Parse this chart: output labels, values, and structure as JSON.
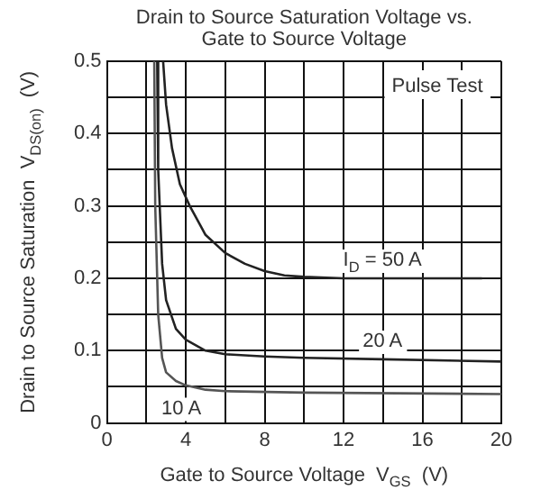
{
  "chart_data": {
    "type": "line",
    "title": "Drain to Source Saturation Voltage vs. Gate to Source Voltage",
    "xlabel": "Gate to Source Voltage  V$_{GS}$  (V)",
    "ylabel": "Drain to Source Saturation  V$_{DS(on)}$  (V)",
    "xlim": [
      0,
      20
    ],
    "ylim": [
      0,
      0.5
    ],
    "xticks": [
      0,
      {
        "value": 2,
        "label": null
      },
      4,
      {
        "value": 6,
        "label": null
      },
      8,
      {
        "value": 10,
        "label": null
      },
      12,
      {
        "value": 14,
        "label": null
      },
      16,
      {
        "value": 18,
        "label": null
      },
      20
    ],
    "yticks": [
      0,
      {
        "value": 0.05,
        "label": null
      },
      0.1,
      {
        "value": 0.15,
        "label": null
      },
      0.2,
      {
        "value": 0.25,
        "label": null
      },
      0.3,
      {
        "value": 0.35,
        "label": null
      },
      0.4,
      {
        "value": 0.45,
        "label": null
      },
      0.5
    ],
    "grid": true,
    "legend": false,
    "marker": "none",
    "line_style": "solid",
    "series": [
      {
        "name": "I$_{D}$ = 50 A",
        "color": "#222222",
        "x": [
          2.85,
          3,
          3.3,
          3.7,
          4.2,
          5,
          6,
          7,
          8,
          9,
          10,
          12,
          16,
          19
        ],
        "values": [
          0.5,
          0.44,
          0.38,
          0.33,
          0.3,
          0.26,
          0.235,
          0.22,
          0.21,
          0.204,
          0.202,
          0.2,
          0.2,
          0.2
        ]
      },
      {
        "name": "20 A",
        "color": "#222222",
        "x": [
          2.55,
          2.6,
          2.8,
          3,
          3.5,
          4,
          5,
          6,
          8,
          10,
          14,
          20
        ],
        "values": [
          0.5,
          0.35,
          0.22,
          0.17,
          0.13,
          0.115,
          0.1,
          0.095,
          0.092,
          0.09,
          0.088,
          0.085
        ]
      },
      {
        "name": "10 A",
        "color": "#555555",
        "x": [
          2.4,
          2.45,
          2.6,
          2.8,
          3,
          3.5,
          4,
          5,
          6,
          10,
          20
        ],
        "values": [
          0.5,
          0.3,
          0.15,
          0.09,
          0.07,
          0.058,
          0.052,
          0.046,
          0.044,
          0.042,
          0.04
        ]
      }
    ],
    "annotations": [
      "Pulse Test"
    ]
  }
}
